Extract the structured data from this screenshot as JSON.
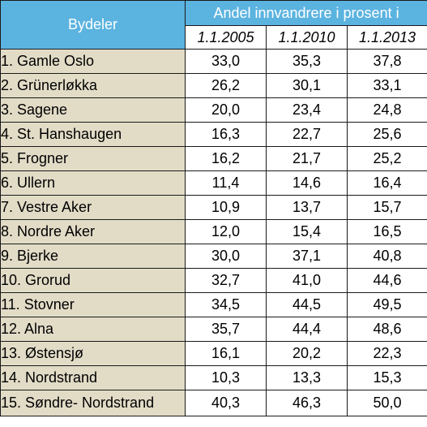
{
  "table": {
    "district_header": "Bydeler",
    "group_header": "Andel innvandrere i prosent i",
    "years": [
      "1.1.2005",
      "1.1.2010",
      "1.1.2013"
    ],
    "rows": [
      {
        "name": "1. Gamle Oslo",
        "values": [
          "33,0",
          "35,3",
          "37,8"
        ]
      },
      {
        "name": "2. Grünerløkka",
        "values": [
          "26,2",
          "30,1",
          "33,1"
        ]
      },
      {
        "name": "3. Sagene",
        "values": [
          "20,0",
          "23,4",
          "24,8"
        ]
      },
      {
        "name": "4. St. Hanshaugen",
        "values": [
          "16,3",
          "22,7",
          "25,6"
        ]
      },
      {
        "name": "5. Frogner",
        "values": [
          "16,2",
          "21,7",
          "25,2"
        ]
      },
      {
        "name": "6. Ullern",
        "values": [
          "11,4",
          "14,6",
          "16,4"
        ]
      },
      {
        "name": "7. Vestre Aker",
        "values": [
          "10,9",
          "13,7",
          "15,7"
        ]
      },
      {
        "name": "8. Nordre Aker",
        "values": [
          "12,0",
          "15,4",
          "16,5"
        ]
      },
      {
        "name": "9. Bjerke",
        "values": [
          "30,0",
          "37,1",
          "40,8"
        ]
      },
      {
        "name": "10. Grorud",
        "values": [
          "32,7",
          "41,0",
          "44,6"
        ]
      },
      {
        "name": "11. Stovner",
        "values": [
          "34,5",
          "44,5",
          "49,5"
        ]
      },
      {
        "name": "12. Alna",
        "values": [
          "35,7",
          "44,4",
          "48,6"
        ]
      },
      {
        "name": "13. Østensjø",
        "values": [
          "16,1",
          "20,2",
          "22,3"
        ]
      },
      {
        "name": "14. Nordstrand",
        "values": [
          "10,3",
          "13,3",
          "15,3"
        ]
      },
      {
        "name": "15. Søndre- Nordstrand",
        "values": [
          "40,3",
          "46,3",
          "50,0"
        ]
      }
    ]
  },
  "colors": {
    "header_blue": "#5bb3e0",
    "name_cell_beige": "#e2dcc7",
    "border": "#1a1a1a"
  }
}
